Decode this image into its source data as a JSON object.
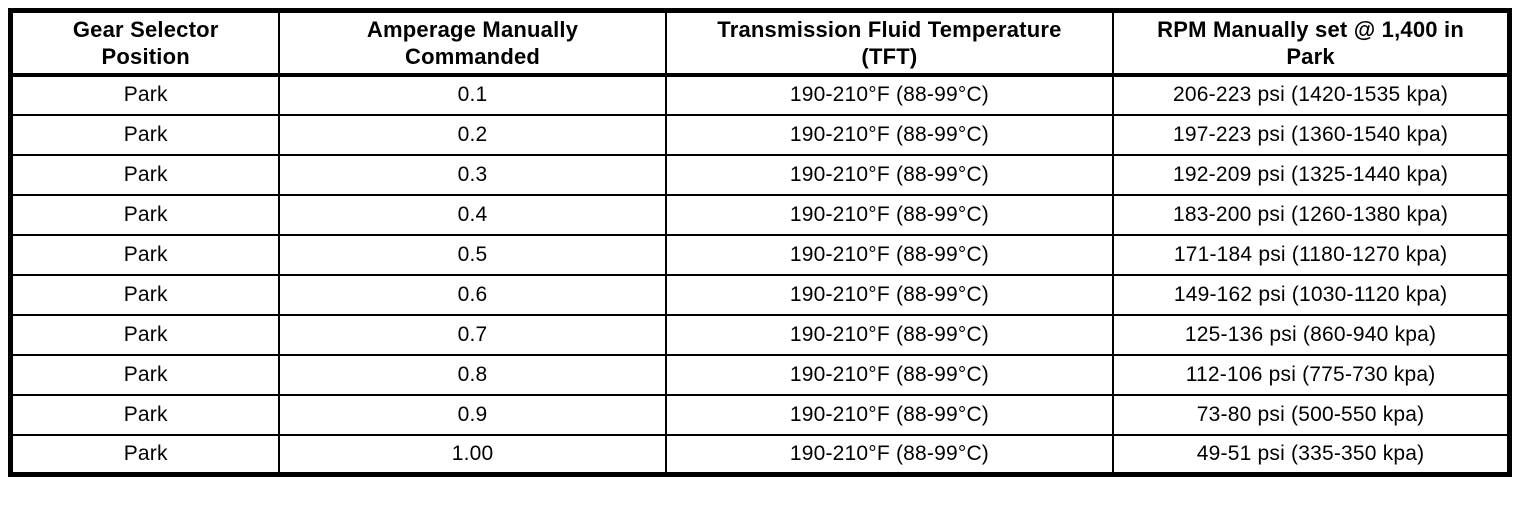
{
  "table": {
    "title": "Transmission pressure specification table",
    "columns": [
      {
        "name": "gear-selector-position",
        "lines": [
          "Gear Selector",
          "Position"
        ]
      },
      {
        "name": "amperage-commanded",
        "lines": [
          "Amperage Manually",
          "Commanded"
        ]
      },
      {
        "name": "tft",
        "lines": [
          "Transmission Fluid Temperature",
          "(TFT)"
        ]
      },
      {
        "name": "pressure-at-1400-rpm",
        "lines": [
          "RPM Manually set @ 1,400 in",
          "Park"
        ]
      }
    ],
    "rows": [
      [
        "Park",
        "0.1",
        "190-210°F (88-99°C)",
        "206-223 psi (1420-1535 kpa)"
      ],
      [
        "Park",
        "0.2",
        "190-210°F (88-99°C)",
        "197-223 psi (1360-1540 kpa)"
      ],
      [
        "Park",
        "0.3",
        "190-210°F (88-99°C)",
        "192-209 psi (1325-1440 kpa)"
      ],
      [
        "Park",
        "0.4",
        "190-210°F (88-99°C)",
        "183-200 psi (1260-1380 kpa)"
      ],
      [
        "Park",
        "0.5",
        "190-210°F (88-99°C)",
        "171-184 psi (1180-1270 kpa)"
      ],
      [
        "Park",
        "0.6",
        "190-210°F (88-99°C)",
        "149-162 psi (1030-1120 kpa)"
      ],
      [
        "Park",
        "0.7",
        "190-210°F (88-99°C)",
        "125-136 psi (860-940 kpa)"
      ],
      [
        "Park",
        "0.8",
        "190-210°F (88-99°C)",
        "112-106 psi (775-730 kpa)"
      ],
      [
        "Park",
        "0.9",
        "190-210°F (88-99°C)",
        "73-80 psi (500-550 kpa)"
      ],
      [
        "Park",
        "1.00",
        "190-210°F (88-99°C)",
        "49-51 psi (335-350 kpa)"
      ]
    ]
  },
  "colors": {
    "border": "#000000",
    "text": "#000000",
    "background": "#ffffff"
  }
}
